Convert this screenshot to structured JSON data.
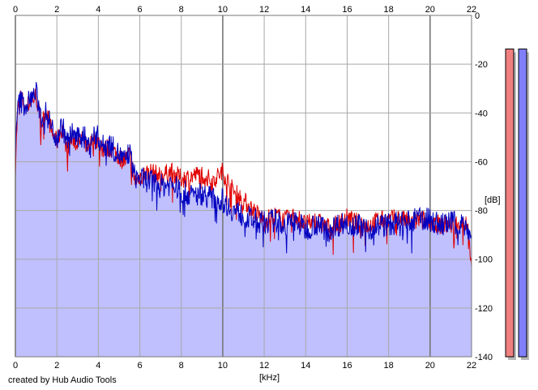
{
  "credit": "created by Hub Audio Tools",
  "chart_data": {
    "type": "line",
    "xlabel": "[kHz]",
    "ylabel": "[dB]",
    "xlim": [
      0,
      22
    ],
    "ylim": [
      -140,
      0
    ],
    "xticks": [
      0,
      2,
      4,
      6,
      8,
      10,
      12,
      14,
      16,
      18,
      20,
      22
    ],
    "yticks": [
      0,
      -20,
      -40,
      -60,
      -80,
      -100,
      -120,
      -140
    ],
    "grid": true,
    "series": [
      {
        "color": "#e00000",
        "x": [
          0,
          0.1,
          0.25,
          0.5,
          0.75,
          1,
          1.25,
          1.5,
          1.75,
          2,
          2.25,
          2.5,
          2.75,
          3,
          3.25,
          3.5,
          3.75,
          4,
          4.25,
          4.5,
          4.75,
          5,
          5.25,
          5.5,
          5.75,
          6,
          6.5,
          7,
          7.5,
          8,
          8.5,
          9,
          9.5,
          10,
          10.5,
          11,
          11.5,
          12,
          12.5,
          13,
          13.5,
          14,
          14.5,
          15,
          15.5,
          16,
          16.5,
          17,
          17.5,
          18,
          18.5,
          19,
          19.5,
          20,
          20.5,
          21,
          21.5,
          21.8,
          22
        ],
        "y": [
          -62,
          -40,
          -33,
          -38,
          -35,
          -33,
          -45,
          -38,
          -48,
          -52,
          -46,
          -55,
          -50,
          -53,
          -50,
          -56,
          -50,
          -52,
          -55,
          -54,
          -56,
          -58,
          -60,
          -57,
          -68,
          -66,
          -64,
          -66,
          -64,
          -67,
          -66,
          -65,
          -68,
          -64,
          -72,
          -76,
          -80,
          -84,
          -82,
          -84,
          -82,
          -86,
          -84,
          -87,
          -86,
          -83,
          -85,
          -86,
          -84,
          -84,
          -83,
          -85,
          -84,
          -84,
          -86,
          -86,
          -85,
          -86,
          -103
        ]
      },
      {
        "color": "#0000c0",
        "x": [
          0,
          0.1,
          0.25,
          0.5,
          0.75,
          1,
          1.25,
          1.5,
          1.75,
          2,
          2.25,
          2.5,
          2.75,
          3,
          3.25,
          3.5,
          3.75,
          4,
          4.25,
          4.5,
          4.75,
          5,
          5.25,
          5.5,
          5.75,
          6,
          6.5,
          7,
          7.5,
          8,
          8.5,
          9,
          9.5,
          10,
          10.5,
          11,
          11.5,
          12,
          12.5,
          13,
          13.5,
          14,
          14.5,
          15,
          15.5,
          16,
          16.5,
          17,
          17.5,
          18,
          18.5,
          19,
          19.5,
          20,
          20.5,
          21,
          21.5,
          21.8,
          22
        ],
        "y": [
          -58,
          -38,
          -35,
          -37,
          -34,
          -32,
          -42,
          -40,
          -46,
          -50,
          -45,
          -52,
          -48,
          -51,
          -48,
          -54,
          -49,
          -50,
          -54,
          -52,
          -55,
          -57,
          -60,
          -56,
          -66,
          -67,
          -68,
          -70,
          -69,
          -72,
          -74,
          -73,
          -75,
          -76,
          -80,
          -82,
          -84,
          -85,
          -84,
          -86,
          -84,
          -88,
          -85,
          -88,
          -86,
          -85,
          -86,
          -88,
          -86,
          -86,
          -85,
          -85,
          -83,
          -84,
          -86,
          -85,
          -85,
          -87,
          -92
        ]
      }
    ],
    "fill_color": "#c0c0ff",
    "meters": [
      {
        "color": "#f08080",
        "level": 0.986
      },
      {
        "color": "#8080ff",
        "level": 0.986
      }
    ]
  }
}
